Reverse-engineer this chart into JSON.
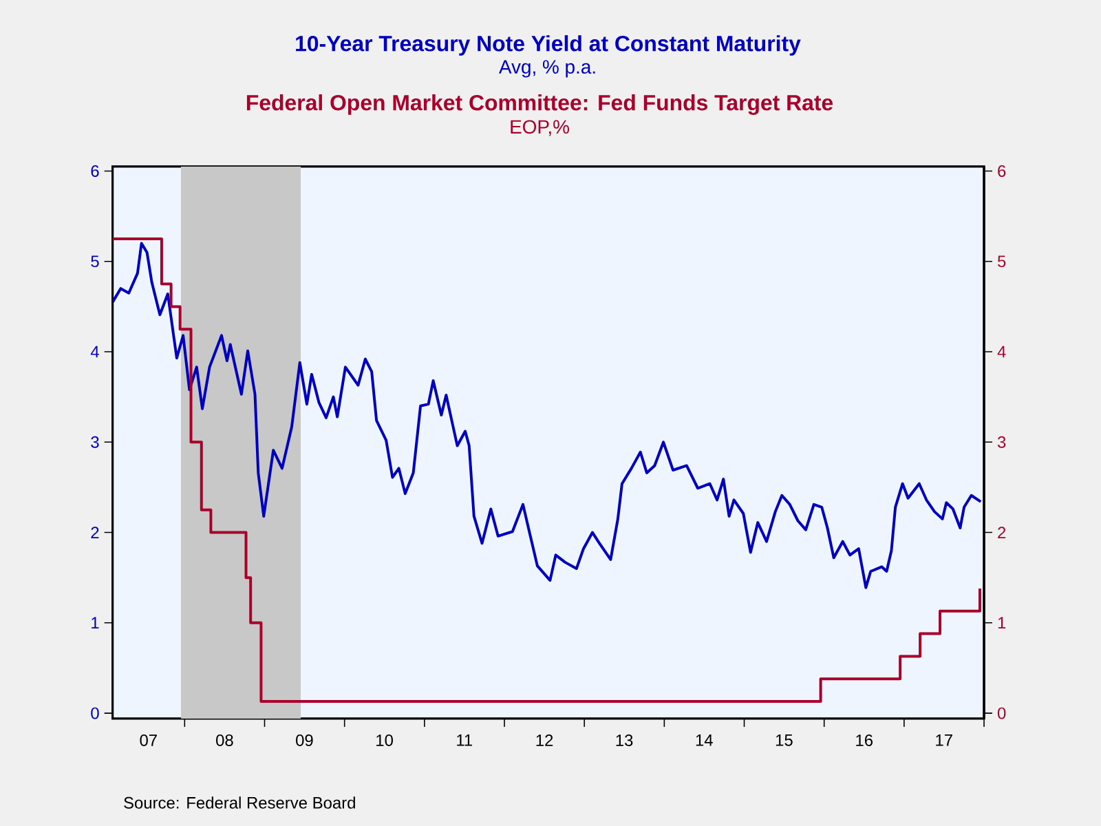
{
  "chart_data": {
    "type": "line",
    "series": [
      {
        "name": "10-Year Treasury Note Yield at Constant Maturity",
        "color": "#0000c0",
        "x": [
          "2007-02-06",
          "2007-03-15",
          "2007-04-21",
          "2007-05-31",
          "2007-06-18",
          "2007-07-13",
          "2007-08-04",
          "2007-09-10",
          "2007-10-16",
          "2007-11-26",
          "2007-12-25",
          "2008-01-23",
          "2008-02-25",
          "2008-03-22",
          "2008-04-24",
          "2008-06-18",
          "2008-07-13",
          "2008-07-28",
          "2008-09-17",
          "2008-10-16",
          "2008-11-18",
          "2008-12-03",
          "2008-12-28",
          "2009-02-10",
          "2009-03-22",
          "2009-05-05",
          "2009-06-11",
          "2009-07-13",
          "2009-08-04",
          "2009-09-06",
          "2009-10-09",
          "2009-11-11",
          "2009-11-29",
          "2010-01-05",
          "2010-03-04",
          "2010-04-06",
          "2010-05-05",
          "2010-05-27",
          "2010-07-10",
          "2010-08-08",
          "2010-09-06",
          "2010-10-05",
          "2010-11-11",
          "2010-12-14",
          "2011-01-19",
          "2011-02-10",
          "2011-03-19",
          "2011-04-10",
          "2011-05-31",
          "2011-07-06",
          "2011-07-24",
          "2011-08-15",
          "2011-09-21",
          "2011-10-31",
          "2011-12-03",
          "2012-02-07",
          "2012-03-26",
          "2012-04-24",
          "2012-05-31",
          "2012-07-28",
          "2012-08-23",
          "2012-10-05",
          "2012-11-26",
          "2012-12-28",
          "2013-02-07",
          "2013-03-11",
          "2013-05-01",
          "2013-06-03",
          "2013-06-22",
          "2013-08-04",
          "2013-09-14",
          "2013-10-13",
          "2013-11-18",
          "2013-12-28",
          "2014-02-10",
          "2014-04-13",
          "2014-06-03",
          "2014-07-28",
          "2014-08-30",
          "2014-09-28",
          "2014-10-24",
          "2014-11-15",
          "2014-12-28",
          "2015-01-30",
          "2015-03-04",
          "2015-04-13",
          "2015-05-23",
          "2015-06-22",
          "2015-07-28",
          "2015-09-03",
          "2015-10-09",
          "2015-11-15",
          "2015-12-21",
          "2016-01-16",
          "2016-02-14",
          "2016-03-26",
          "2016-04-28",
          "2016-06-07",
          "2016-07-10",
          "2016-08-01",
          "2016-09-21",
          "2016-10-13",
          "2016-11-04",
          "2016-11-22",
          "2016-12-25",
          "2017-01-19",
          "2017-03-11",
          "2017-04-13",
          "2017-05-20",
          "2017-06-25",
          "2017-07-13",
          "2017-08-12",
          "2017-09-14",
          "2017-10-02",
          "2017-11-04",
          "2017-12-17"
        ],
        "values": [
          4.55,
          4.7,
          4.65,
          4.87,
          5.2,
          5.1,
          4.77,
          4.41,
          4.64,
          3.93,
          4.18,
          3.58,
          3.83,
          3.37,
          3.83,
          4.18,
          3.9,
          4.08,
          3.53,
          4.01,
          3.53,
          2.66,
          2.18,
          2.91,
          2.71,
          3.17,
          3.88,
          3.42,
          3.75,
          3.44,
          3.27,
          3.5,
          3.28,
          3.83,
          3.63,
          3.92,
          3.78,
          3.24,
          3.02,
          2.61,
          2.71,
          2.43,
          2.66,
          3.4,
          3.42,
          3.68,
          3.3,
          3.52,
          2.96,
          3.12,
          2.96,
          2.18,
          1.88,
          2.26,
          1.96,
          2.01,
          2.31,
          2.01,
          1.63,
          1.47,
          1.75,
          1.67,
          1.6,
          1.82,
          2.0,
          1.88,
          1.7,
          2.15,
          2.54,
          2.71,
          2.89,
          2.66,
          2.74,
          3.0,
          2.69,
          2.74,
          2.49,
          2.54,
          2.36,
          2.59,
          2.18,
          2.36,
          2.21,
          1.78,
          2.11,
          1.9,
          2.23,
          2.41,
          2.31,
          2.13,
          2.03,
          2.31,
          2.28,
          2.05,
          1.72,
          1.9,
          1.75,
          1.82,
          1.39,
          1.57,
          1.62,
          1.57,
          1.8,
          2.28,
          2.54,
          2.38,
          2.54,
          2.36,
          2.23,
          2.15,
          2.33,
          2.26,
          2.05,
          2.28,
          2.41,
          2.34
        ]
      },
      {
        "name": "Federal Open Market Committee: Fed Funds Target Rate",
        "color": "#a8002a",
        "type": "step",
        "axis": "y2",
        "x": [
          "2007-02-06",
          "2007-09-18",
          "2007-10-31",
          "2007-12-11",
          "2008-01-30",
          "2008-03-18",
          "2008-04-30",
          "2008-10-08",
          "2008-10-29",
          "2008-12-16",
          "2015-12-16",
          "2016-12-14",
          "2017-03-15",
          "2017-06-14",
          "2017-12-13"
        ],
        "values": [
          5.25,
          4.75,
          4.5,
          4.25,
          3.0,
          2.25,
          2.0,
          1.5,
          1.0,
          0.13,
          0.38,
          0.63,
          0.88,
          1.13,
          1.38
        ]
      }
    ],
    "ylabel": "Avg, % p.a.",
    "xlim": [
      "2007-02-06",
      "2018-01-01"
    ],
    "xticks": [
      {
        "value": "2007-07-20",
        "label": "07"
      },
      {
        "value": "2008-07-02",
        "label": "08"
      },
      {
        "value": "2009-07-02",
        "label": "09"
      },
      {
        "value": "2010-07-02",
        "label": "10"
      },
      {
        "value": "2011-07-02",
        "label": "11"
      },
      {
        "value": "2012-07-02",
        "label": "12"
      },
      {
        "value": "2013-07-02",
        "label": "13"
      },
      {
        "value": "2014-07-02",
        "label": "14"
      },
      {
        "value": "2015-07-02",
        "label": "15"
      },
      {
        "value": "2016-07-02",
        "label": "16"
      },
      {
        "value": "2017-07-02",
        "label": "17"
      }
    ],
    "ylim": [
      -0.06,
      6.05
    ],
    "yticks": [
      0,
      1,
      2,
      3,
      4,
      5,
      6
    ],
    "y2lim": [
      -0.06,
      6.05
    ],
    "y2ticks": [
      0,
      1,
      2,
      3,
      4,
      5,
      6
    ],
    "bands": [
      {
        "axis": "x",
        "from": "2007-12-15",
        "to": "2009-06-15",
        "color": "#c8c8c8"
      }
    ],
    "annotations": [
      "EOP,%",
      "Source:  Federal Reserve Board"
    ]
  }
}
